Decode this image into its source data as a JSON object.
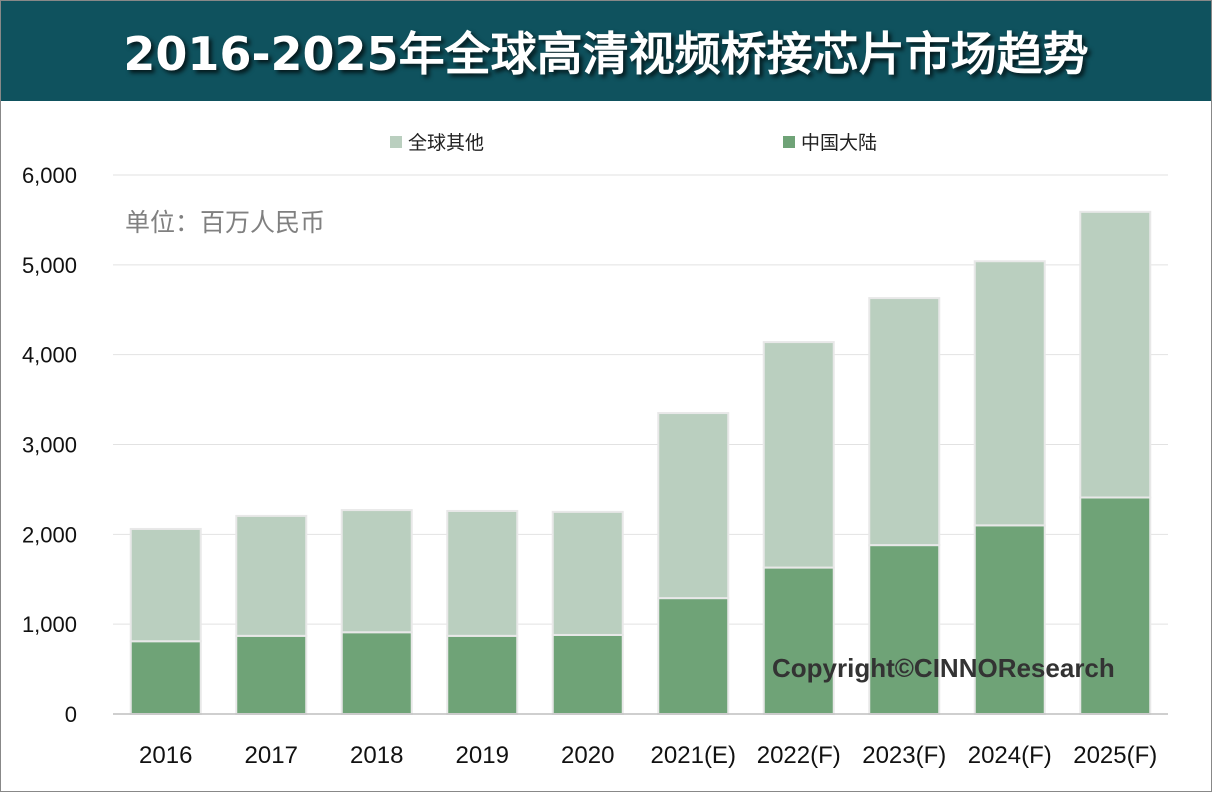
{
  "title": "2016-2025年全球高清视频桥接芯片市场趋势",
  "unit_note": "单位：百万人民币",
  "copyright": "Copyright©CINNOResearch",
  "colors": {
    "header": "#0f525e",
    "global_other": "#bacfbf",
    "china": "#6fa377"
  },
  "chart_data": {
    "type": "bar",
    "stacked": true,
    "title": "2016-2025年全球高清视频桥接芯片市场趋势",
    "xlabel": "",
    "ylabel": "单位：百万人民币",
    "ylim": [
      0,
      6000
    ],
    "yticks": [
      0,
      1000,
      2000,
      3000,
      4000,
      5000,
      6000
    ],
    "ytick_labels": [
      "0",
      "1,000",
      "2,000",
      "3,000",
      "4,000",
      "5,000",
      "6,000"
    ],
    "grid": true,
    "legend_position": "top",
    "categories": [
      "2016",
      "2017",
      "2018",
      "2019",
      "2020",
      "2021(E)",
      "2022(F)",
      "2023(F)",
      "2024(F)",
      "2025(F)"
    ],
    "series": [
      {
        "name": "中国大陆",
        "values": [
          810,
          870,
          910,
          870,
          880,
          1290,
          1630,
          1880,
          2100,
          2410
        ]
      },
      {
        "name": "全球其他",
        "values": [
          1250,
          1335,
          1360,
          1390,
          1370,
          2060,
          2510,
          2750,
          2940,
          3180
        ]
      }
    ]
  }
}
